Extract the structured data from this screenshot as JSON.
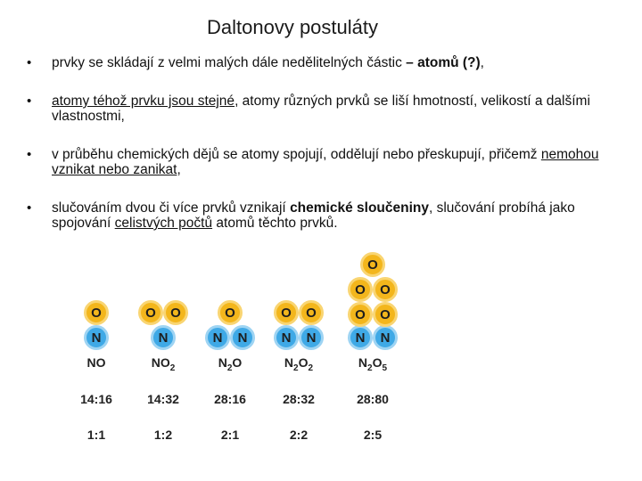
{
  "title": "Daltonovy postuláty",
  "bullets": [
    {
      "pre": "prvky se skládají z velmi malých dále nedělitelných částic ",
      "bold": "– atomů (?)",
      "post": ","
    },
    {
      "u1": "atomy téhož prvku jsou stejné",
      "rest": ", atomy různých prvků se liší hmotností, velikostí a dalšími vlastnostmi,"
    },
    {
      "pre": "v průběhu chemických dějů se atomy spojují, oddělují nebo přeskupují, přičemž ",
      "u1": "nemohou vznikat nebo zanikat",
      "post": ","
    },
    {
      "pre": "slučováním dvou či více prvků vznikají ",
      "bold": "chemické sloučeniny",
      "mid": ", slučování probíhá jako spojování ",
      "u1": "celistvých počtů",
      "post": " atomů těchto prvků."
    }
  ],
  "atom_labels": {
    "oxygen": "O",
    "nitrogen": "N"
  },
  "compounds": [
    {
      "formula_base": "NO",
      "formula_sub": "",
      "formula_tail": "",
      "masses": "14:16",
      "ratio": "1:1",
      "n_count": 1,
      "o_count": 1
    },
    {
      "formula_base": "NO",
      "formula_sub": "2",
      "formula_tail": "",
      "masses": "14:32",
      "ratio": "1:2",
      "n_count": 1,
      "o_count": 2
    },
    {
      "formula_base": "N",
      "formula_sub": "2",
      "formula_tail": "O",
      "masses": "28:16",
      "ratio": "2:1",
      "n_count": 2,
      "o_count": 1
    },
    {
      "formula_base": "N",
      "formula_sub": "2",
      "formula_tail": "O",
      "formula_sub2": "2",
      "masses": "28:32",
      "ratio": "2:2",
      "n_count": 2,
      "o_count": 2
    },
    {
      "formula_base": "N",
      "formula_sub": "2",
      "formula_tail": "O",
      "formula_sub2": "5",
      "masses": "28:80",
      "ratio": "2:5",
      "n_count": 2,
      "o_count": 5
    }
  ],
  "colors": {
    "oxygen": "#f3b61c",
    "nitrogen": "#3fa9e6"
  }
}
